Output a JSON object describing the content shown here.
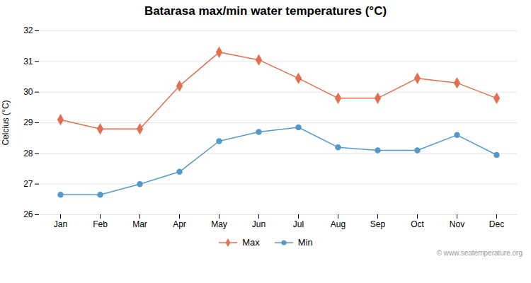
{
  "chart_data": {
    "type": "line",
    "title": "Batarasa max/min water temperatures (°C)",
    "ylabel": "Celcius (°C)",
    "categories": [
      "Jan",
      "Feb",
      "Mar",
      "Apr",
      "May",
      "Jun",
      "Jul",
      "Aug",
      "Sep",
      "Oct",
      "Nov",
      "Dec"
    ],
    "series": [
      {
        "name": "Max",
        "color": "#e07050",
        "marker": "diamond",
        "values": [
          29.1,
          28.8,
          28.8,
          30.2,
          31.3,
          31.05,
          30.45,
          29.8,
          29.8,
          30.45,
          30.3,
          29.8
        ]
      },
      {
        "name": "Min",
        "color": "#5599cc",
        "marker": "circle",
        "values": [
          26.65,
          26.65,
          27.0,
          27.4,
          28.4,
          28.7,
          28.85,
          28.2,
          28.1,
          28.1,
          28.6,
          27.95
        ]
      }
    ],
    "ylim": [
      26.0,
      32.0
    ],
    "yticks": [
      26,
      27,
      28,
      29,
      30,
      31,
      32
    ],
    "grid": true,
    "legend": "bottom",
    "annotation": "© www.seatemperature.org"
  }
}
